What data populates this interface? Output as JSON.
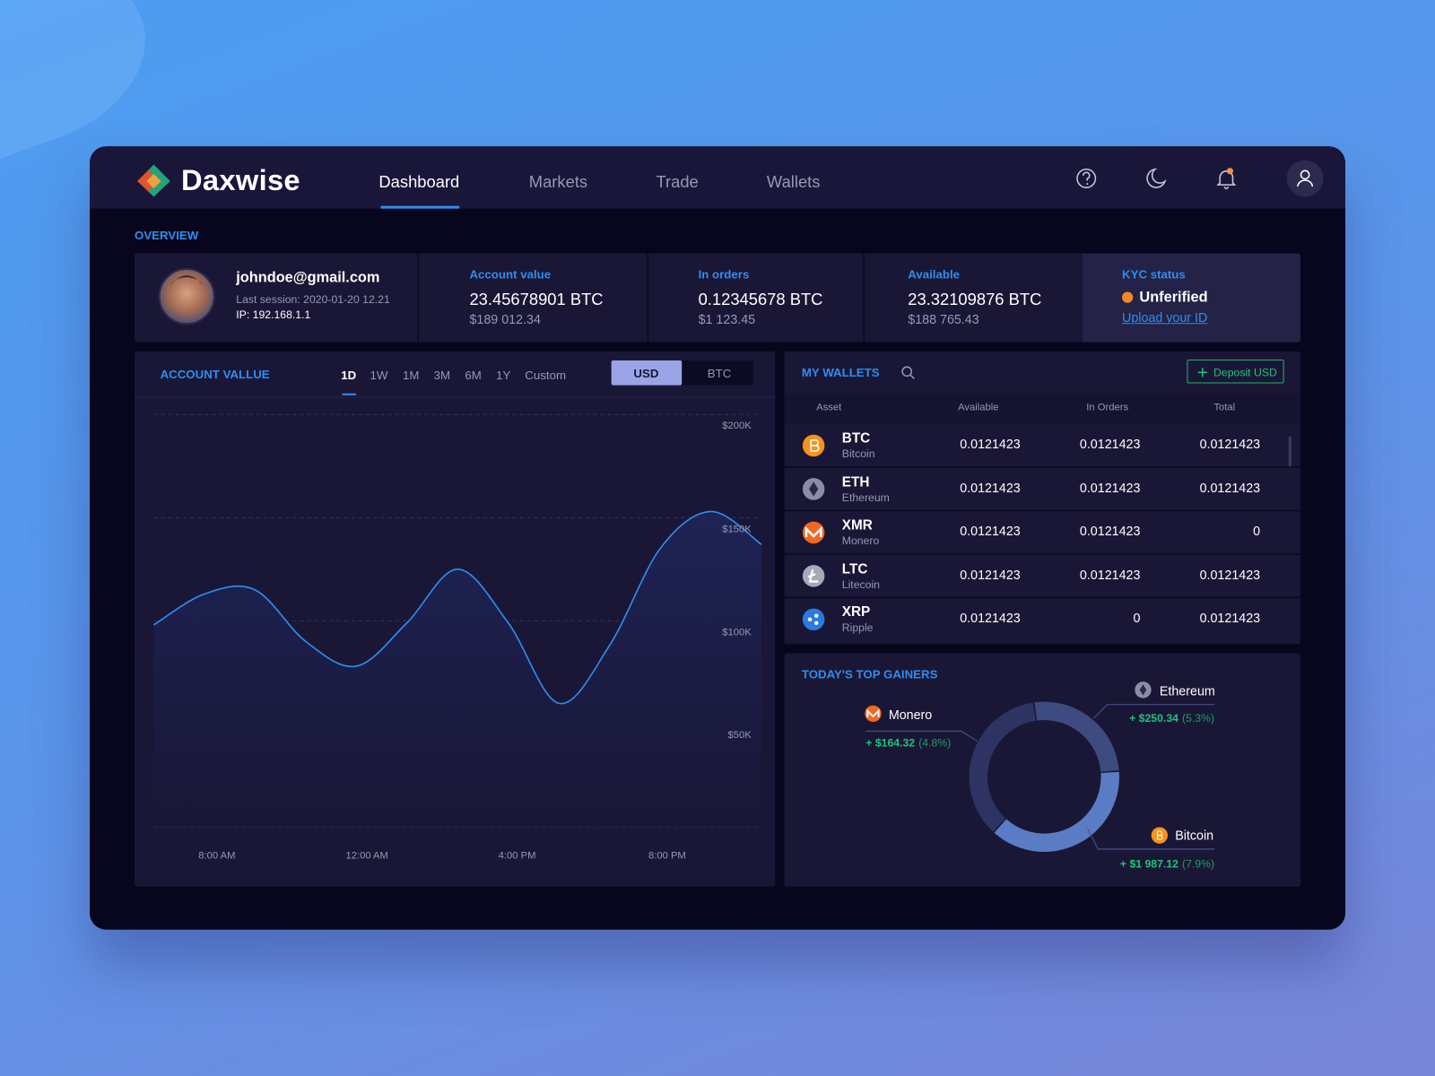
{
  "header": {
    "brand": "Daxwise",
    "nav": [
      "Dashboard",
      "Markets",
      "Trade",
      "Wallets"
    ]
  },
  "overview": {
    "title": "OVERVIEW",
    "user": {
      "email": "johndoe@gmail.com",
      "last_session": "Last session: 2020-01-20 12.21",
      "ip": "IP: 192.168.1.1"
    },
    "stats": [
      {
        "label": "Account value",
        "value": "23.45678901 BTC",
        "sub": "$189 012.34"
      },
      {
        "label": "In orders",
        "value": "0.12345678 BTC",
        "sub": "$1 123.45"
      },
      {
        "label": "Available",
        "value": "23.32109876 BTC",
        "sub": "$188 765.43"
      }
    ],
    "kyc": {
      "label": "KYC status",
      "status": "Unferified",
      "link": "Upload your ID"
    }
  },
  "wallets": {
    "title": "MY WALLETS",
    "button": "Deposit USD",
    "columns": [
      "Asset",
      "Available",
      "In Orders",
      "Total"
    ],
    "rows": [
      {
        "symbol": "BTC",
        "name": "Bitcoin",
        "available": 0.0121423,
        "in_orders": 0.0121423,
        "total": 0.0121423
      },
      {
        "symbol": "ETH",
        "name": "Ethereum",
        "available": 0.0121423,
        "in_orders": 0.0121423,
        "total": 0.0121423
      },
      {
        "symbol": "XMR",
        "name": "Monero",
        "available": 0.0121423,
        "in_orders": 0.0121423,
        "total": 0
      },
      {
        "symbol": "LTC",
        "name": "Litecoin",
        "available": 0.0121423,
        "in_orders": 0.0121423,
        "total": 0.0121423
      },
      {
        "symbol": "XRP",
        "name": "Ripple",
        "available": 0.0121423,
        "in_orders": 0,
        "total": 0.0121423
      }
    ]
  },
  "chart_data": [
    {
      "type": "line",
      "title": "ACCOUNT VALLUE",
      "ranges": [
        "1D",
        "1W",
        "1M",
        "3M",
        "6M",
        "1Y",
        "Custom"
      ],
      "currencies": [
        "USD",
        "BTC"
      ],
      "x_labels": [
        "8:00 AM",
        "12:00 AM",
        "4:00 PM",
        "8:00 PM"
      ],
      "values": [
        98000,
        113000,
        115000,
        90000,
        78000,
        99000,
        125000,
        99000,
        60000,
        88000,
        135000,
        153000,
        137000
      ],
      "color": "#2f8df0",
      "ylim": [
        0,
        200000
      ],
      "yticks": [
        {
          "value": 50000,
          "label": "$50K"
        },
        {
          "value": 100000,
          "label": "$100K"
        },
        {
          "value": 150000,
          "label": "$150K"
        },
        {
          "value": 200000,
          "label": "$200K"
        }
      ],
      "grid": true
    },
    {
      "type": "donut",
      "title": "TODAY'S TOP GAINERS",
      "categories": [
        "Ethereum",
        "Bitcoin",
        "Monero"
      ],
      "values": [
        26,
        38,
        36
      ],
      "colors": [
        "#3e4b80",
        "#5a7cc4",
        "#2d3463"
      ],
      "gains": [
        "+ $250.34",
        "+ $1 987.12",
        "+ $164.32"
      ],
      "gain_pcts": [
        "(5.3%)",
        "(7.9%)",
        "(4.8%)"
      ]
    }
  ]
}
